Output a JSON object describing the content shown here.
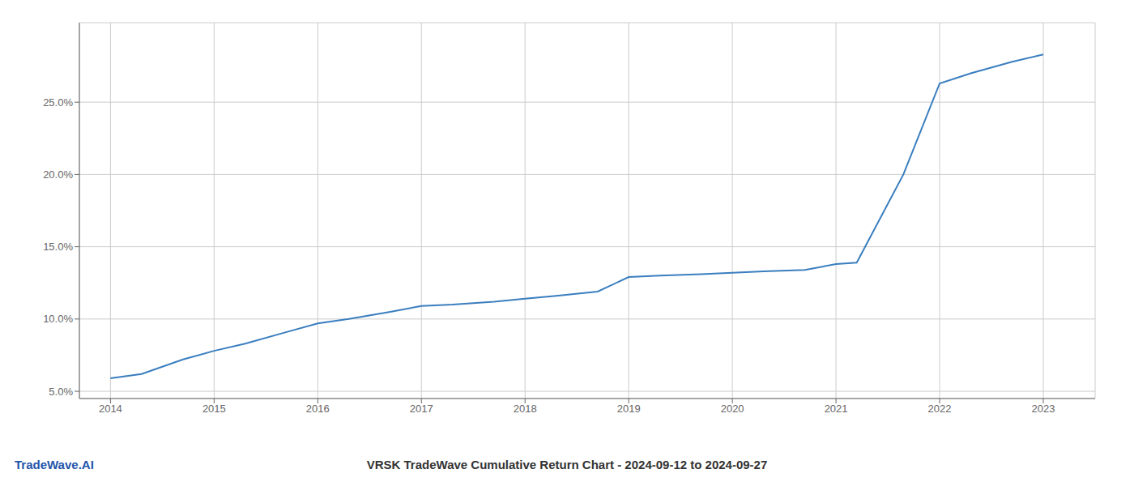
{
  "chart_data": {
    "type": "line",
    "title": "VRSK TradeWave Cumulative Return Chart - 2024-09-12 to 2024-09-27",
    "annotations": [
      "TradeWave.AI"
    ],
    "x": [
      2014.0,
      2014.3,
      2014.7,
      2015.0,
      2015.3,
      2015.7,
      2016.0,
      2016.3,
      2016.7,
      2017.0,
      2017.3,
      2017.7,
      2018.0,
      2018.3,
      2018.7,
      2019.0,
      2019.3,
      2019.7,
      2020.0,
      2020.3,
      2020.7,
      2021.0,
      2021.2,
      2021.65,
      2022.0,
      2022.3,
      2022.7,
      2023.0
    ],
    "values": [
      5.9,
      6.2,
      7.2,
      7.8,
      8.3,
      9.1,
      9.7,
      10.0,
      10.5,
      10.9,
      11.0,
      11.2,
      11.4,
      11.6,
      11.9,
      12.9,
      13.0,
      13.1,
      13.2,
      13.3,
      13.4,
      13.8,
      13.9,
      20.0,
      26.3,
      27.0,
      27.8,
      28.3
    ],
    "color": "#3a7ebf",
    "xlim": [
      2013.7,
      2023.5
    ],
    "ylim": [
      4.5,
      30.5
    ],
    "xticks": [
      2014,
      2015,
      2016,
      2017,
      2018,
      2019,
      2020,
      2021,
      2022,
      2023
    ],
    "yticks": [
      {
        "value": 5.0,
        "label": "5.0%"
      },
      {
        "value": 10.0,
        "label": "10.0%"
      },
      {
        "value": 15.0,
        "label": "15.0%"
      },
      {
        "value": 20.0,
        "label": "20.0%"
      },
      {
        "value": 25.0,
        "label": "25.0%"
      }
    ],
    "grid": true
  }
}
